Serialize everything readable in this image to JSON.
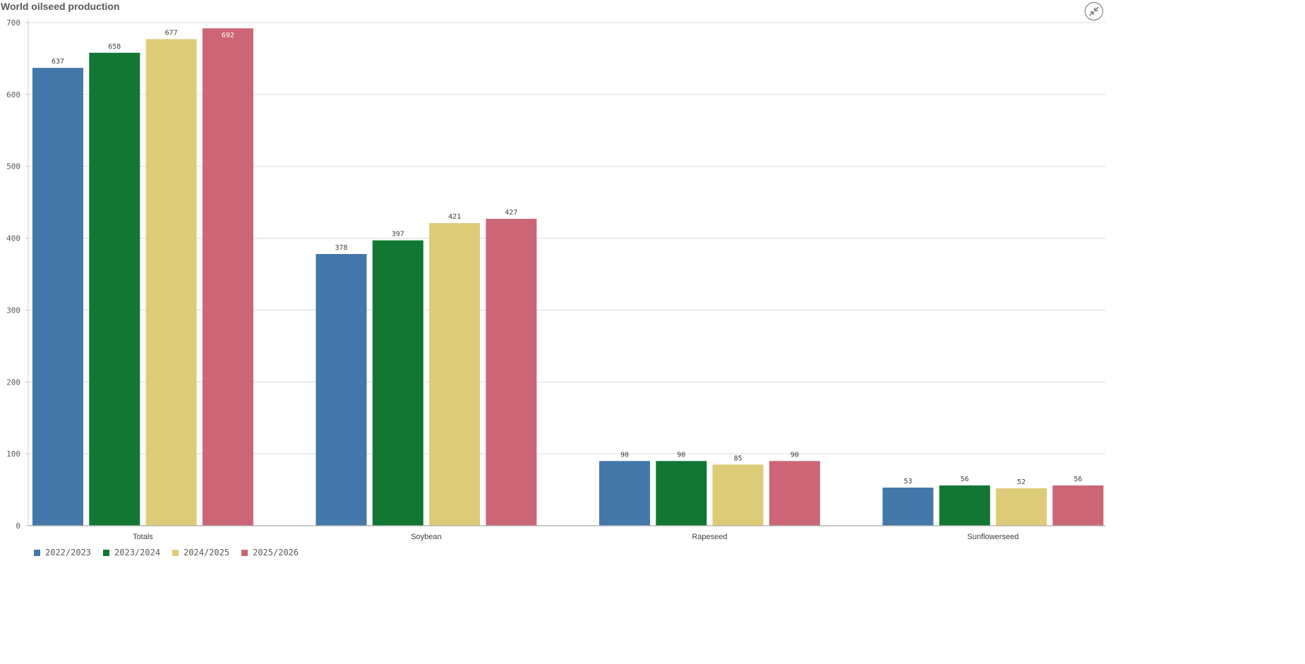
{
  "title": "World oilseed production",
  "collapse_icon": "collapse-arrows-icon",
  "chart_data": {
    "type": "bar",
    "title": "World oilseed production",
    "xlabel": "",
    "ylabel": "",
    "categories": [
      "Totals",
      "Soybean",
      "Rapeseed",
      "Sunflowerseed"
    ],
    "series": [
      {
        "name": "2022/2023",
        "color": "#4477aa",
        "values": [
          637,
          378,
          90,
          53
        ]
      },
      {
        "name": "2023/2024",
        "color": "#117733",
        "values": [
          658,
          397,
          90,
          56
        ]
      },
      {
        "name": "2024/2025",
        "color": "#ddcc77",
        "values": [
          677,
          421,
          85,
          52
        ]
      },
      {
        "name": "2025/2026",
        "color": "#cc6677",
        "values": [
          692,
          427,
          90,
          56
        ]
      }
    ],
    "ylim": [
      0,
      700
    ],
    "yticks": [
      0,
      100,
      200,
      300,
      400,
      500,
      600,
      700
    ],
    "grid": true,
    "legend_position": "bottom-left"
  }
}
